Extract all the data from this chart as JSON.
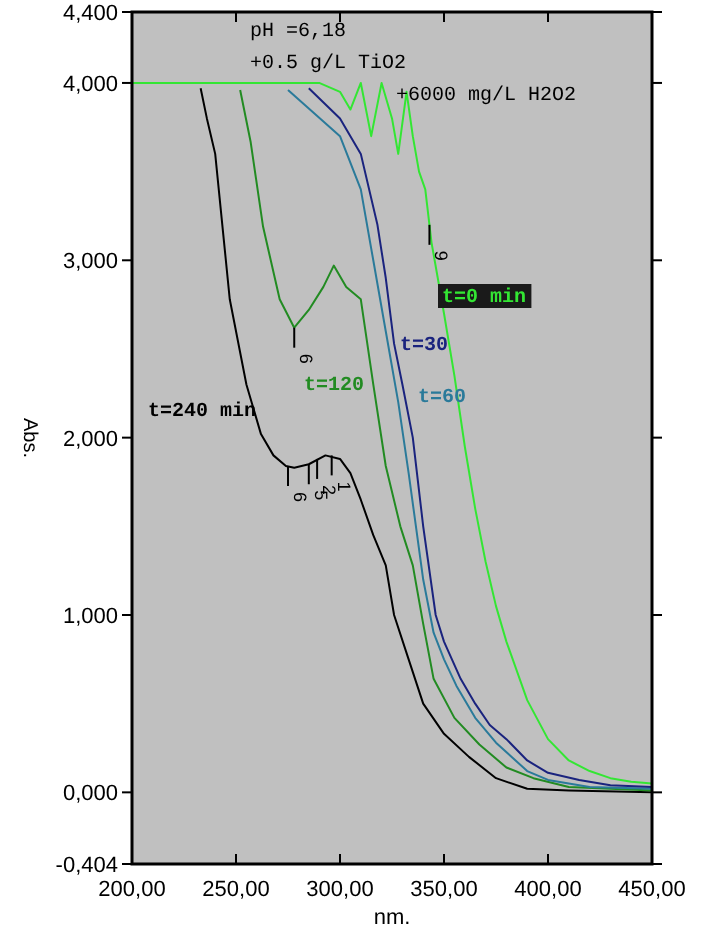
{
  "chart_data": {
    "type": "line",
    "xlabel": "nm.",
    "ylabel": "Abs.",
    "xlim": [
      200,
      450
    ],
    "ylim": [
      -0.404,
      4.4
    ],
    "xticks": [
      {
        "value": 200,
        "label": "200,00"
      },
      {
        "value": 250,
        "label": "250,00"
      },
      {
        "value": 300,
        "label": "300,00"
      },
      {
        "value": 350,
        "label": "350,00"
      },
      {
        "value": 400,
        "label": "400,00"
      },
      {
        "value": 450,
        "label": "450,00"
      }
    ],
    "yticks": [
      {
        "value": -0.404,
        "label": "-0,404"
      },
      {
        "value": 0,
        "label": "0,000"
      },
      {
        "value": 1,
        "label": "1,000"
      },
      {
        "value": 2,
        "label": "2,000"
      },
      {
        "value": 3,
        "label": "3,000"
      },
      {
        "value": 4,
        "label": "4,000"
      },
      {
        "value": 4.4,
        "label": "4,400"
      }
    ],
    "grid": false,
    "marker": "none",
    "line_style": "solid",
    "series": [
      {
        "name": "t=0 min",
        "color": "#33e633",
        "x": [
          200,
          230,
          260,
          290,
          300,
          305,
          310,
          315,
          320,
          325,
          328,
          332,
          335,
          338,
          341,
          344,
          347,
          350,
          355,
          360,
          365,
          370,
          375,
          380,
          390,
          400,
          410,
          420,
          430,
          440,
          450
        ],
        "values": [
          4,
          4,
          4,
          4,
          3.95,
          3.85,
          4,
          3.7,
          4,
          3.8,
          3.6,
          3.95,
          3.7,
          3.5,
          3.4,
          3.1,
          2.9,
          2.7,
          2.35,
          1.95,
          1.6,
          1.3,
          1.05,
          0.85,
          0.52,
          0.3,
          0.18,
          0.12,
          0.08,
          0.06,
          0.05
        ]
      },
      {
        "name": "t=30",
        "color": "#1a237e",
        "x": [
          285,
          300,
          310,
          318,
          322,
          326,
          330,
          335,
          340,
          346,
          350,
          358,
          365,
          372,
          380,
          390,
          400,
          415,
          430,
          450
        ],
        "values": [
          3.97,
          3.8,
          3.6,
          3.2,
          2.9,
          2.53,
          2.3,
          2,
          1.5,
          1,
          0.85,
          0.64,
          0.5,
          0.38,
          0.3,
          0.18,
          0.11,
          0.07,
          0.04,
          0.03
        ]
      },
      {
        "name": "t=60",
        "color": "#2a7a9a",
        "x": [
          275,
          300,
          310,
          316,
          322,
          328,
          333,
          340,
          345,
          350,
          356,
          365,
          375,
          390,
          400,
          420,
          450
        ],
        "values": [
          3.96,
          3.7,
          3.4,
          3,
          2.6,
          2.2,
          1.8,
          1.2,
          0.9,
          0.75,
          0.6,
          0.42,
          0.28,
          0.12,
          0.07,
          0.03,
          0.02
        ]
      },
      {
        "name": "t=120",
        "color": "#228b22",
        "x": [
          252,
          257,
          263,
          271,
          278,
          285,
          292,
          297,
          303,
          310,
          316,
          322,
          329,
          335,
          340,
          345,
          355,
          367,
          380,
          393,
          410,
          450
        ],
        "values": [
          3.96,
          3.67,
          3.19,
          2.78,
          2.62,
          2.72,
          2.85,
          2.97,
          2.85,
          2.78,
          2.3,
          1.84,
          1.5,
          1.28,
          0.95,
          0.64,
          0.42,
          0.27,
          0.14,
          0.08,
          0.03,
          0.01
        ]
      },
      {
        "name": "t=240 min",
        "color": "#000000",
        "x": [
          233,
          236,
          240,
          247,
          255,
          262,
          268,
          274,
          278,
          285,
          293,
          300,
          305,
          310,
          316,
          322,
          326,
          333,
          340,
          350,
          362,
          375,
          390,
          410,
          450
        ],
        "values": [
          3.97,
          3.8,
          3.6,
          2.78,
          2.3,
          2.02,
          1.9,
          1.84,
          1.83,
          1.85,
          1.9,
          1.88,
          1.8,
          1.65,
          1.45,
          1.28,
          1,
          0.75,
          0.5,
          0.33,
          0.2,
          0.08,
          0.02,
          0.01,
          0
        ]
      }
    ],
    "annotations": [
      "pH =6,18",
      "+0.5 g/L TiO2",
      "+6000 mg/L H2O2",
      {
        "text": "6",
        "x": 275,
        "y": 1.84
      },
      {
        "text": "5",
        "x": 285,
        "y": 1.85
      },
      {
        "text": "2",
        "x": 289,
        "y": 1.88
      },
      {
        "text": "1",
        "x": 296,
        "y": 1.9
      },
      {
        "text": "6",
        "x": 278,
        "y": 2.62
      },
      {
        "text": "9",
        "x": 343,
        "y": 3.2
      }
    ]
  }
}
